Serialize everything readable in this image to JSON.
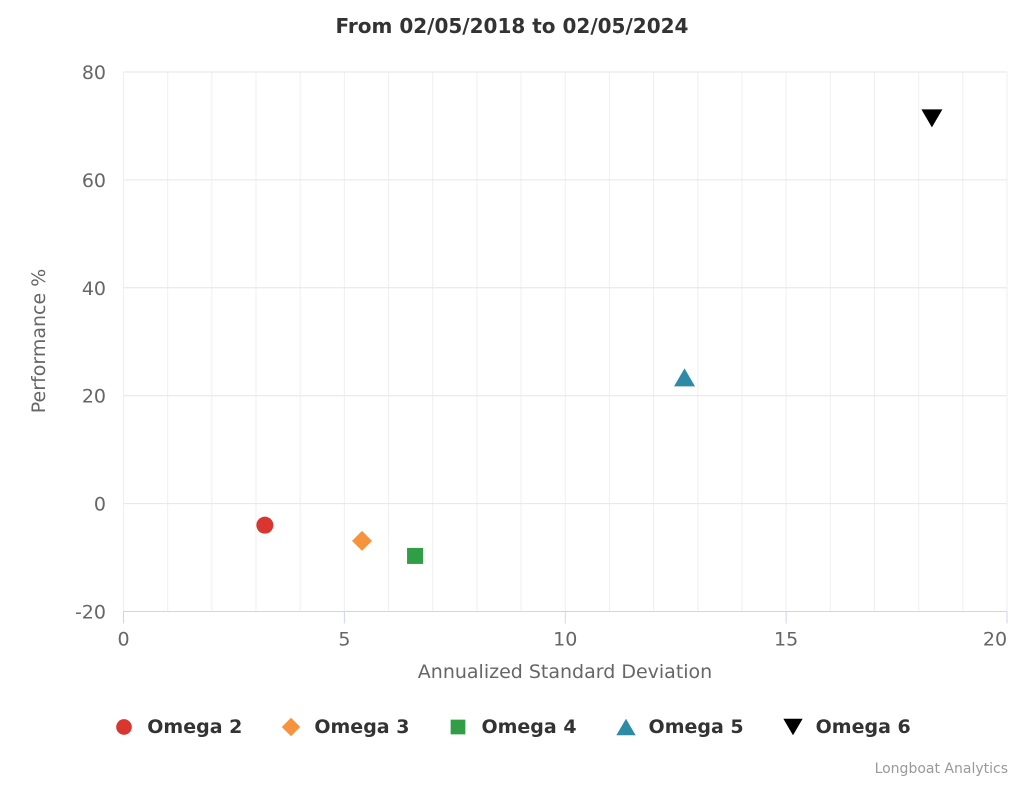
{
  "credits": "Longboat Analytics",
  "chart_data": {
    "type": "scatter",
    "title": "From 02/05/2018 to 02/05/2024",
    "xlabel": "Annualized Standard Deviation",
    "ylabel": "Performance %",
    "xlim": [
      0,
      20
    ],
    "ylim": [
      -20,
      80
    ],
    "x_ticks": [
      0,
      5,
      10,
      15,
      20
    ],
    "y_ticks": [
      -20,
      0,
      20,
      40,
      60,
      80
    ],
    "x_minor_grid_step": 1,
    "grid": true,
    "legend_position": "bottom",
    "series": [
      {
        "name": "Omega 2",
        "marker": "circle",
        "color": "#d8362f",
        "points": [
          {
            "x": 3.2,
            "y": -4.0
          }
        ]
      },
      {
        "name": "Omega 3",
        "marker": "diamond",
        "color": "#f5943c",
        "points": [
          {
            "x": 5.4,
            "y": -6.9
          }
        ]
      },
      {
        "name": "Omega 4",
        "marker": "square",
        "color": "#2f9e44",
        "points": [
          {
            "x": 6.6,
            "y": -9.7
          }
        ]
      },
      {
        "name": "Omega 5",
        "marker": "triangle-up",
        "color": "#2e8ba6",
        "points": [
          {
            "x": 12.7,
            "y": 23.4
          }
        ]
      },
      {
        "name": "Omega 6",
        "marker": "triangle-down",
        "color": "#000000",
        "points": [
          {
            "x": 18.3,
            "y": 71.4
          }
        ]
      }
    ],
    "colors": {
      "background": "#ffffff",
      "minor_grid": "#efefef",
      "grid": "#e6e6e6",
      "axis_line": "#ccd6eb",
      "tick_label": "#666666",
      "axis_title": "#666666",
      "title": "#333333",
      "legend_text": "#333333",
      "credits": "#999999"
    }
  }
}
